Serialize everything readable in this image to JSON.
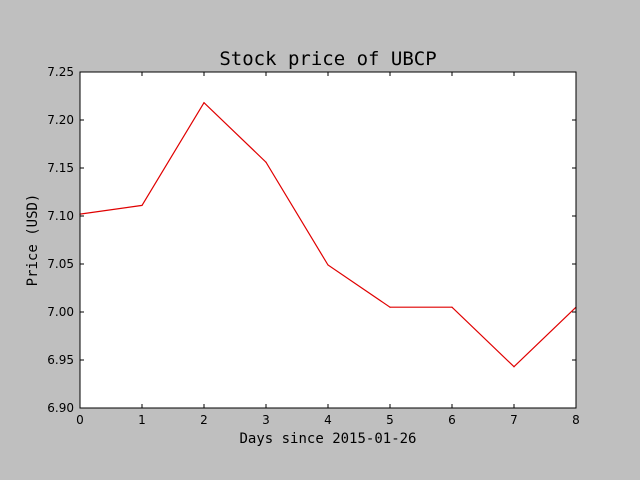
{
  "chart_data": {
    "type": "line",
    "title": "Stock price of UBCP",
    "xlabel": "Days since 2015-01-26",
    "ylabel": "Price (USD)",
    "x": [
      0,
      1,
      2,
      3,
      4,
      5,
      6,
      7,
      8
    ],
    "series": [
      {
        "values": [
          7.102,
          7.111,
          7.218,
          7.156,
          7.049,
          7.005,
          7.005,
          6.943,
          7.005
        ]
      }
    ],
    "xlim": [
      0,
      8
    ],
    "ylim": [
      6.9,
      7.25
    ],
    "xticks": [
      "0",
      "1",
      "2",
      "3",
      "4",
      "5",
      "6",
      "7",
      "8"
    ],
    "yticks": [
      "6.90",
      "6.95",
      "7.00",
      "7.05",
      "7.10",
      "7.15",
      "7.20",
      "7.25"
    ],
    "grid": false,
    "colors": {
      "figure_background": "#bfbfbf",
      "plot_background": "#ffffff",
      "line": "#e00000"
    }
  }
}
